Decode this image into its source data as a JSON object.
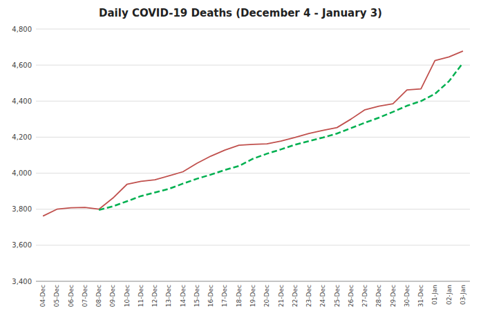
{
  "chart_data": {
    "type": "line",
    "title": "Daily COVID-19 Deaths (December 4 - January 3)",
    "categories": [
      "04-Dec",
      "05-Dec",
      "06-Dec",
      "07-Dec",
      "08-Dec",
      "09-Dec",
      "10-Dec",
      "11-Dec",
      "12-Dec",
      "13-Dec",
      "14-Dec",
      "15-Dec",
      "16-Dec",
      "17-Dec",
      "18-Dec",
      "19-Dec",
      "20-Dec",
      "21-Dec",
      "22-Dec",
      "23-Dec",
      "24-Dec",
      "25-Dec",
      "26-Dec",
      "27-Dec",
      "28-Dec",
      "29-Dec",
      "30-Dec",
      "31-Dec",
      "01-Jan",
      "02-Jan",
      "03-Jan"
    ],
    "series": [
      {
        "color": "#C0504D",
        "line_style": "solid",
        "values": [
          3762,
          3800,
          3808,
          3810,
          3800,
          3862,
          3938,
          3955,
          3963,
          3985,
          4008,
          4055,
          4095,
          4128,
          4155,
          4160,
          4163,
          4178,
          4198,
          4220,
          4238,
          4253,
          4300,
          4352,
          4372,
          4385,
          4462,
          4468,
          4625,
          4645,
          4678
        ]
      },
      {
        "color": "#00B050",
        "line_style": "dashed",
        "values": [
          null,
          null,
          null,
          null,
          3796,
          3816,
          3844,
          3873,
          3893,
          3913,
          3942,
          3969,
          3992,
          4018,
          4040,
          4080,
          4108,
          4132,
          4158,
          4178,
          4198,
          4220,
          4250,
          4280,
          4308,
          4340,
          4374,
          4400,
          4440,
          4510,
          4612
        ]
      }
    ],
    "ylim": [
      3400,
      4800
    ],
    "yticks": [
      {
        "value": 3400,
        "label": "3,400"
      },
      {
        "value": 3600,
        "label": "3,600"
      },
      {
        "value": 3800,
        "label": "3,800"
      },
      {
        "value": 4000,
        "label": "4,000"
      },
      {
        "value": 4200,
        "label": "4,200"
      },
      {
        "value": 4400,
        "label": "4,400"
      },
      {
        "value": 4600,
        "label": "4,600"
      },
      {
        "value": 4800,
        "label": "4,800"
      }
    ],
    "grid": true
  }
}
